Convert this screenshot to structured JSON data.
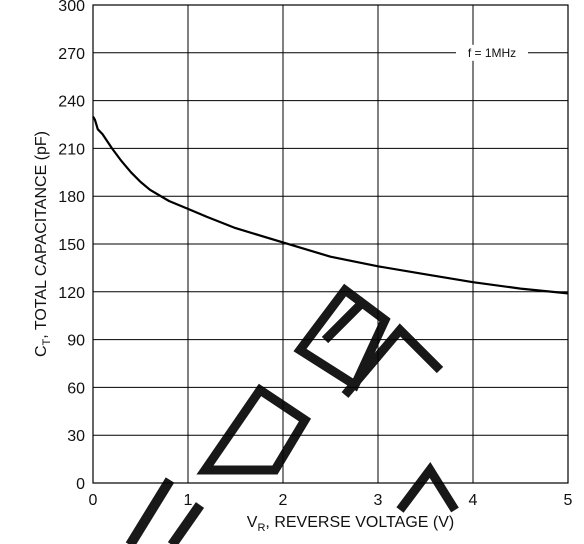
{
  "chart_data": {
    "type": "line",
    "title": "",
    "xlabel": {
      "main": "V",
      "sub": "R",
      "rest": ", REVERSE VOLTAGE (V)"
    },
    "ylabel": {
      "main": "C",
      "sub": "T",
      "rest": ", TOTAL CAPACITANCE (pF)"
    },
    "xlim": [
      0,
      5
    ],
    "ylim": [
      0,
      300
    ],
    "xticks": [
      "0",
      "1",
      "2",
      "3",
      "4",
      "5"
    ],
    "yticks": [
      "0",
      "30",
      "60",
      "90",
      "120",
      "150",
      "180",
      "210",
      "240",
      "270",
      "300"
    ],
    "grid": true,
    "annotation": "f = 1MHz",
    "series": [
      {
        "x": [
          0,
          0.02,
          0.05,
          0.1,
          0.2,
          0.3,
          0.4,
          0.5,
          0.6,
          0.8,
          1.0,
          1.2,
          1.5,
          2.0,
          2.5,
          3.0,
          3.5,
          4.0,
          4.5,
          5.0
        ],
        "values": [
          230,
          228,
          222,
          219,
          210,
          202,
          195,
          189,
          184,
          177,
          172,
          167,
          160,
          151,
          142,
          136,
          131,
          126,
          122,
          119
        ]
      }
    ]
  }
}
